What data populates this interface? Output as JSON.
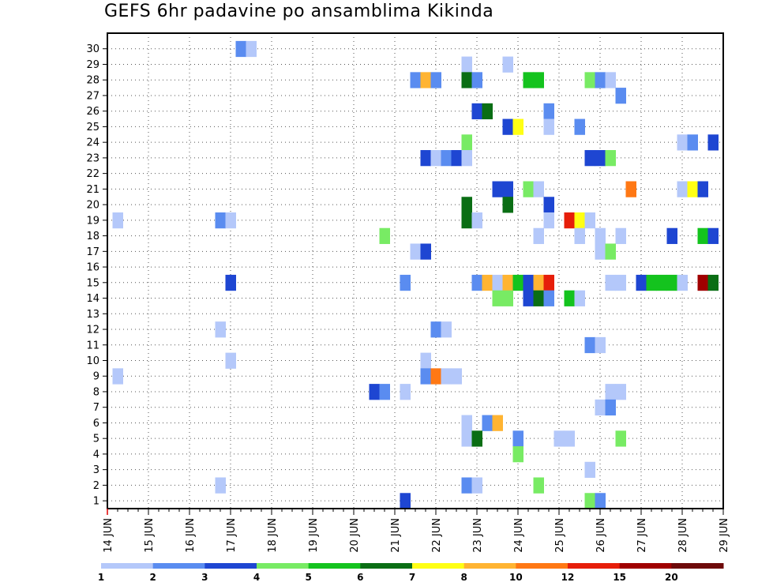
{
  "title": "GEFS 6hr padavine po ansamblima Kikinda",
  "chart_data": {
    "type": "heatmap",
    "title": "GEFS 6hr padavine po ansamblima Kikinda",
    "x_unit": "6h steps",
    "x_ticks": [
      "14 JUN",
      "15 JUN",
      "16 JUN",
      "17 JUN",
      "18 JUN",
      "19 JUN",
      "20 JUN",
      "21 JUN",
      "22 JUN",
      "23 JUN",
      "24 JUN",
      "25 JUN",
      "26 JUN",
      "27 JUN",
      "28 JUN",
      "29 JUN"
    ],
    "y_ticks": [
      1,
      2,
      3,
      4,
      5,
      6,
      7,
      8,
      9,
      10,
      11,
      12,
      13,
      14,
      15,
      16,
      17,
      18,
      19,
      20,
      21,
      22,
      23,
      24,
      25,
      26,
      27,
      28,
      29,
      30
    ],
    "colorbar": {
      "levels": [
        "1",
        "2",
        "3",
        "4",
        "5",
        "6",
        "7",
        "8",
        "10",
        "12",
        "15",
        "20"
      ],
      "colors": [
        "#b4c8fa",
        "#5a8cf0",
        "#1e46d2",
        "#78eb64",
        "#14c31e",
        "#0a6e14",
        "#ffff14",
        "#ffb432",
        "#ff7814",
        "#e61e0a",
        "#a00000",
        "#6e0a0a"
      ]
    },
    "cells": [
      {
        "m": 30,
        "x": 29.25,
        "c": 2
      },
      {
        "m": 30,
        "x": 29.5,
        "c": 1
      },
      {
        "m": 29,
        "x": 34.75,
        "c": 1
      },
      {
        "m": 29,
        "x": 35.75,
        "c": 1
      },
      {
        "m": 28,
        "x": 33.5,
        "c": 2
      },
      {
        "m": 28,
        "x": 33.75,
        "c": 8
      },
      {
        "m": 28,
        "x": 34.0,
        "c": 2
      },
      {
        "m": 28,
        "x": 34.75,
        "c": 6
      },
      {
        "m": 28,
        "x": 35.0,
        "c": 2
      },
      {
        "m": 28,
        "x": 36.25,
        "c": 5
      },
      {
        "m": 28,
        "x": 36.5,
        "c": 5
      },
      {
        "m": 28,
        "x": 37.75,
        "c": 4
      },
      {
        "m": 28,
        "x": 38.0,
        "c": 2
      },
      {
        "m": 28,
        "x": 38.25,
        "c": 1
      },
      {
        "m": 27,
        "x": 38.5,
        "c": 2
      },
      {
        "m": 26,
        "x": 35.0,
        "c": 3
      },
      {
        "m": 26,
        "x": 35.25,
        "c": 6
      },
      {
        "m": 26,
        "x": 36.75,
        "c": 2
      },
      {
        "m": 25,
        "x": 35.75,
        "c": 3
      },
      {
        "m": 25,
        "x": 36.0,
        "c": 7
      },
      {
        "m": 25,
        "x": 36.75,
        "c": 1
      },
      {
        "m": 25,
        "x": 37.5,
        "c": 2
      },
      {
        "m": 24,
        "x": 34.75,
        "c": 4
      },
      {
        "m": 24,
        "x": 40.0,
        "c": 1
      },
      {
        "m": 24,
        "x": 40.25,
        "c": 2
      },
      {
        "m": 24,
        "x": 40.75,
        "c": 3
      },
      {
        "m": 23,
        "x": 33.75,
        "c": 3
      },
      {
        "m": 23,
        "x": 34.0,
        "c": 1
      },
      {
        "m": 23,
        "x": 34.25,
        "c": 2
      },
      {
        "m": 23,
        "x": 34.5,
        "c": 3
      },
      {
        "m": 23,
        "x": 34.75,
        "c": 1
      },
      {
        "m": 23,
        "x": 37.75,
        "c": 3
      },
      {
        "m": 23,
        "x": 38.0,
        "c": 3
      },
      {
        "m": 23,
        "x": 38.25,
        "c": 4
      },
      {
        "m": 21,
        "x": 35.5,
        "c": 3
      },
      {
        "m": 21,
        "x": 35.75,
        "c": 3
      },
      {
        "m": 21,
        "x": 36.25,
        "c": 4
      },
      {
        "m": 21,
        "x": 36.5,
        "c": 1
      },
      {
        "m": 21,
        "x": 38.75,
        "c": 9
      },
      {
        "m": 21,
        "x": 40.0,
        "c": 1
      },
      {
        "m": 21,
        "x": 40.25,
        "c": 7
      },
      {
        "m": 21,
        "x": 40.5,
        "c": 3
      },
      {
        "m": 20,
        "x": 34.75,
        "c": 6
      },
      {
        "m": 20,
        "x": 35.75,
        "c": 6
      },
      {
        "m": 20,
        "x": 36.75,
        "c": 3
      },
      {
        "m": 19,
        "x": 26.25,
        "c": 1
      },
      {
        "m": 19,
        "x": 28.75,
        "c": 2
      },
      {
        "m": 19,
        "x": 29.0,
        "c": 1
      },
      {
        "m": 19,
        "x": 34.75,
        "c": 6
      },
      {
        "m": 19,
        "x": 35.0,
        "c": 1
      },
      {
        "m": 19,
        "x": 36.75,
        "c": 1
      },
      {
        "m": 19,
        "x": 37.25,
        "c": 10
      },
      {
        "m": 19,
        "x": 37.5,
        "c": 7
      },
      {
        "m": 19,
        "x": 37.75,
        "c": 1
      },
      {
        "m": 18,
        "x": 32.75,
        "c": 4
      },
      {
        "m": 18,
        "x": 36.5,
        "c": 1
      },
      {
        "m": 18,
        "x": 37.5,
        "c": 1
      },
      {
        "m": 18,
        "x": 38.0,
        "c": 1
      },
      {
        "m": 18,
        "x": 38.5,
        "c": 1
      },
      {
        "m": 18,
        "x": 39.75,
        "c": 3
      },
      {
        "m": 18,
        "x": 40.5,
        "c": 5
      },
      {
        "m": 18,
        "x": 40.75,
        "c": 3
      },
      {
        "m": 17,
        "x": 33.5,
        "c": 1
      },
      {
        "m": 17,
        "x": 33.75,
        "c": 3
      },
      {
        "m": 17,
        "x": 38.0,
        "c": 1
      },
      {
        "m": 17,
        "x": 38.25,
        "c": 4
      },
      {
        "m": 15,
        "x": 29.0,
        "c": 3
      },
      {
        "m": 15,
        "x": 33.25,
        "c": 2
      },
      {
        "m": 15,
        "x": 35.0,
        "c": 2
      },
      {
        "m": 15,
        "x": 35.25,
        "c": 8
      },
      {
        "m": 15,
        "x": 35.5,
        "c": 1
      },
      {
        "m": 15,
        "x": 35.75,
        "c": 8
      },
      {
        "m": 15,
        "x": 36.0,
        "c": 5
      },
      {
        "m": 15,
        "x": 36.25,
        "c": 3
      },
      {
        "m": 15,
        "x": 36.5,
        "c": 8
      },
      {
        "m": 15,
        "x": 36.75,
        "c": 10
      },
      {
        "m": 15,
        "x": 38.25,
        "c": 1
      },
      {
        "m": 15,
        "x": 38.5,
        "c": 1
      },
      {
        "m": 15,
        "x": 39.0,
        "c": 3
      },
      {
        "m": 15,
        "x": 39.25,
        "c": 5
      },
      {
        "m": 15,
        "x": 39.5,
        "c": 5
      },
      {
        "m": 15,
        "x": 39.75,
        "c": 5
      },
      {
        "m": 15,
        "x": 40.0,
        "c": 1
      },
      {
        "m": 15,
        "x": 40.5,
        "c": 11
      },
      {
        "m": 15,
        "x": 40.75,
        "c": 6
      },
      {
        "m": 14,
        "x": 35.5,
        "c": 4
      },
      {
        "m": 14,
        "x": 35.75,
        "c": 4
      },
      {
        "m": 14,
        "x": 36.25,
        "c": 3
      },
      {
        "m": 14,
        "x": 36.5,
        "c": 6
      },
      {
        "m": 14,
        "x": 36.75,
        "c": 2
      },
      {
        "m": 14,
        "x": 37.25,
        "c": 5
      },
      {
        "m": 14,
        "x": 37.5,
        "c": 1
      },
      {
        "m": 12,
        "x": 28.75,
        "c": 1
      },
      {
        "m": 12,
        "x": 34.0,
        "c": 2
      },
      {
        "m": 12,
        "x": 34.25,
        "c": 1
      },
      {
        "m": 11,
        "x": 37.75,
        "c": 2
      },
      {
        "m": 11,
        "x": 38.0,
        "c": 1
      },
      {
        "m": 10,
        "x": 29.0,
        "c": 1
      },
      {
        "m": 10,
        "x": 33.75,
        "c": 1
      },
      {
        "m": 9,
        "x": 26.25,
        "c": 1
      },
      {
        "m": 9,
        "x": 33.75,
        "c": 2
      },
      {
        "m": 9,
        "x": 34.0,
        "c": 9
      },
      {
        "m": 9,
        "x": 34.25,
        "c": 1
      },
      {
        "m": 9,
        "x": 34.5,
        "c": 1
      },
      {
        "m": 8,
        "x": 32.5,
        "c": 3
      },
      {
        "m": 8,
        "x": 32.75,
        "c": 2
      },
      {
        "m": 8,
        "x": 33.25,
        "c": 1
      },
      {
        "m": 8,
        "x": 38.25,
        "c": 1
      },
      {
        "m": 8,
        "x": 38.5,
        "c": 1
      },
      {
        "m": 7,
        "x": 38.0,
        "c": 1
      },
      {
        "m": 7,
        "x": 38.25,
        "c": 2
      },
      {
        "m": 6,
        "x": 34.75,
        "c": 1
      },
      {
        "m": 6,
        "x": 35.25,
        "c": 2
      },
      {
        "m": 6,
        "x": 35.5,
        "c": 8
      },
      {
        "m": 5,
        "x": 34.75,
        "c": 1
      },
      {
        "m": 5,
        "x": 35.0,
        "c": 6
      },
      {
        "m": 5,
        "x": 36.0,
        "c": 2
      },
      {
        "m": 5,
        "x": 37.0,
        "c": 1
      },
      {
        "m": 5,
        "x": 37.25,
        "c": 1
      },
      {
        "m": 5,
        "x": 38.5,
        "c": 4
      },
      {
        "m": 4,
        "x": 36.0,
        "c": 4
      },
      {
        "m": 3,
        "x": 37.75,
        "c": 1
      },
      {
        "m": 2,
        "x": 28.75,
        "c": 1
      },
      {
        "m": 2,
        "x": 34.75,
        "c": 2
      },
      {
        "m": 2,
        "x": 35.0,
        "c": 1
      },
      {
        "m": 2,
        "x": 36.5,
        "c": 4
      },
      {
        "m": 1,
        "x": 33.25,
        "c": 3
      },
      {
        "m": 1,
        "x": 37.75,
        "c": 4
      },
      {
        "m": 1,
        "x": 38.0,
        "c": 2
      }
    ]
  }
}
